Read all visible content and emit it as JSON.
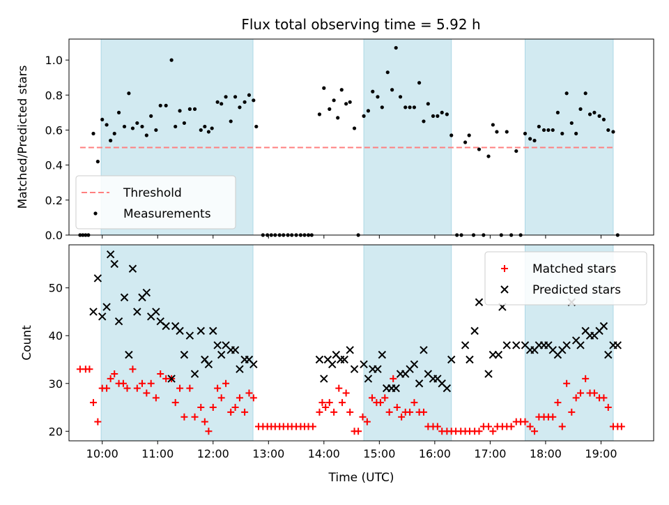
{
  "title": "Flux total observing time = 5.92 h",
  "chart_data": [
    {
      "type": "scatter",
      "title": "Flux total observing time = 5.92 h",
      "xlabel": "",
      "ylabel": "Matched/Predicted stars",
      "x_axis": "time (UTC), hours",
      "xlim": [
        9.4,
        19.95
      ],
      "ylim": [
        0,
        1.12
      ],
      "yticks": [
        0.0,
        0.2,
        0.4,
        0.6,
        0.8,
        1.0
      ],
      "ytick_labels": [
        "0.0",
        "0.2",
        "0.4",
        "0.6",
        "0.8",
        "1.0"
      ],
      "grid": false,
      "legend_position": "lower-left",
      "shaded_intervals": [
        [
          9.98,
          12.72
        ],
        [
          14.72,
          16.3
        ],
        [
          17.63,
          19.22
        ]
      ],
      "shade_color": "#add8e6",
      "series": [
        {
          "name": "Threshold",
          "style": "dashed-line",
          "color": "#ff7f7f",
          "x": [
            9.6,
            19.25
          ],
          "y": [
            0.5,
            0.5
          ]
        },
        {
          "name": "Measurements",
          "style": "dot",
          "color": "#000000",
          "x": [
            9.6,
            9.65,
            9.7,
            9.75,
            9.84,
            9.92,
            10.0,
            10.08,
            10.15,
            10.22,
            10.3,
            10.4,
            10.48,
            10.55,
            10.63,
            10.72,
            10.8,
            10.88,
            10.97,
            11.05,
            11.15,
            11.25,
            11.32,
            11.4,
            11.48,
            11.58,
            11.67,
            11.78,
            11.85,
            11.92,
            11.98,
            12.08,
            12.15,
            12.23,
            12.32,
            12.4,
            12.48,
            12.57,
            12.65,
            12.73,
            12.78,
            12.9,
            12.98,
            13.05,
            13.12,
            13.2,
            13.27,
            13.35,
            13.42,
            13.5,
            13.58,
            13.65,
            13.72,
            13.78,
            13.92,
            14.0,
            14.1,
            14.18,
            14.25,
            14.32,
            14.4,
            14.47,
            14.55,
            14.62,
            14.72,
            14.8,
            14.88,
            14.97,
            15.05,
            15.15,
            15.23,
            15.3,
            15.38,
            15.47,
            15.55,
            15.63,
            15.72,
            15.8,
            15.88,
            15.97,
            16.05,
            16.13,
            16.22,
            16.3,
            16.4,
            16.48,
            16.55,
            16.62,
            16.7,
            16.8,
            16.88,
            16.97,
            17.05,
            17.12,
            17.2,
            17.3,
            17.38,
            17.47,
            17.55,
            17.63,
            17.72,
            17.8,
            17.88,
            17.97,
            18.05,
            18.13,
            18.22,
            18.3,
            18.38,
            18.47,
            18.55,
            18.63,
            18.72,
            18.8,
            18.88,
            18.97,
            19.05,
            19.13,
            19.22,
            19.3
          ],
          "y": [
            0.0,
            0.0,
            0.0,
            0.0,
            0.58,
            0.42,
            0.66,
            0.63,
            0.54,
            0.58,
            0.7,
            0.62,
            0.81,
            0.61,
            0.64,
            0.62,
            0.57,
            0.68,
            0.6,
            0.74,
            0.74,
            1.0,
            0.62,
            0.71,
            0.64,
            0.72,
            0.72,
            0.6,
            0.62,
            0.59,
            0.61,
            0.76,
            0.75,
            0.79,
            0.65,
            0.79,
            0.73,
            0.76,
            0.8,
            0.77,
            0.62,
            0.0,
            0.0,
            0.0,
            0.0,
            0.0,
            0.0,
            0.0,
            0.0,
            0.0,
            0.0,
            0.0,
            0.0,
            0.0,
            0.69,
            0.84,
            0.72,
            0.77,
            0.67,
            0.83,
            0.75,
            0.76,
            0.61,
            0.0,
            0.68,
            0.71,
            0.82,
            0.79,
            0.73,
            0.93,
            0.83,
            1.07,
            0.79,
            0.73,
            0.73,
            0.73,
            0.87,
            0.65,
            0.75,
            0.68,
            0.68,
            0.7,
            0.69,
            0.57,
            0.0,
            0.0,
            0.53,
            0.57,
            0.0,
            0.49,
            0.0,
            0.45,
            0.63,
            0.59,
            0.0,
            0.59,
            0.0,
            0.48,
            0.0,
            0.58,
            0.55,
            0.54,
            0.62,
            0.6,
            0.6,
            0.6,
            0.7,
            0.58,
            0.81,
            0.64,
            0.58,
            0.72,
            0.81,
            0.69,
            0.7,
            0.68,
            0.66,
            0.6,
            0.59,
            0.0
          ]
        }
      ]
    },
    {
      "type": "scatter",
      "title": "",
      "xlabel": "Time (UTC)",
      "ylabel": "Count",
      "xlim": [
        9.4,
        19.95
      ],
      "ylim": [
        18,
        59
      ],
      "xticks": [
        10,
        11,
        12,
        13,
        14,
        15,
        16,
        17,
        18,
        19
      ],
      "xtick_labels": [
        "10:00",
        "11:00",
        "12:00",
        "13:00",
        "14:00",
        "15:00",
        "16:00",
        "17:00",
        "18:00",
        "19:00"
      ],
      "yticks": [
        20,
        30,
        40,
        50
      ],
      "ytick_labels": [
        "20",
        "30",
        "40",
        "50"
      ],
      "grid": false,
      "legend_position": "upper-right",
      "shaded_intervals": [
        [
          9.98,
          12.72
        ],
        [
          14.72,
          16.3
        ],
        [
          17.63,
          19.22
        ]
      ],
      "shade_color": "#add8e6",
      "series": [
        {
          "name": "Matched stars",
          "marker": "plus",
          "color": "#ff0000",
          "x": [
            9.6,
            9.7,
            9.77,
            9.84,
            9.92,
            10.0,
            10.08,
            10.15,
            10.22,
            10.3,
            10.38,
            10.45,
            10.55,
            10.63,
            10.72,
            10.8,
            10.88,
            10.97,
            11.05,
            11.15,
            11.25,
            11.32,
            11.4,
            11.48,
            11.58,
            11.67,
            11.78,
            11.85,
            11.92,
            12.0,
            12.08,
            12.15,
            12.23,
            12.32,
            12.4,
            12.48,
            12.57,
            12.65,
            12.73,
            12.82,
            12.9,
            12.98,
            13.05,
            13.12,
            13.2,
            13.27,
            13.35,
            13.42,
            13.5,
            13.58,
            13.65,
            13.72,
            13.8,
            13.92,
            13.97,
            14.03,
            14.1,
            14.18,
            14.27,
            14.33,
            14.4,
            14.47,
            14.55,
            14.62,
            14.7,
            14.78,
            14.87,
            14.95,
            15.02,
            15.1,
            15.18,
            15.25,
            15.32,
            15.4,
            15.47,
            15.55,
            15.63,
            15.72,
            15.8,
            15.88,
            15.97,
            16.05,
            16.13,
            16.22,
            16.3,
            16.38,
            16.47,
            16.55,
            16.63,
            16.72,
            16.8,
            16.88,
            16.97,
            17.05,
            17.13,
            17.22,
            17.3,
            17.38,
            17.47,
            17.55,
            17.63,
            17.72,
            17.8,
            17.88,
            17.97,
            18.05,
            18.13,
            18.22,
            18.3,
            18.38,
            18.47,
            18.55,
            18.63,
            18.72,
            18.8,
            18.88,
            18.97,
            19.05,
            19.13,
            19.22,
            19.3,
            19.37
          ],
          "y": [
            33,
            33,
            33,
            26,
            22,
            29,
            29,
            31,
            32,
            30,
            30,
            29,
            33,
            29,
            30,
            28,
            30,
            27,
            32,
            31,
            31,
            26,
            29,
            23,
            29,
            23,
            25,
            22,
            20,
            25,
            29,
            27,
            30,
            24,
            25,
            27,
            24,
            28,
            27,
            21,
            21,
            21,
            21,
            21,
            21,
            21,
            21,
            21,
            21,
            21,
            21,
            21,
            21,
            24,
            26,
            25,
            26,
            24,
            29,
            26,
            28,
            24,
            20,
            20,
            23,
            22,
            27,
            26,
            26,
            27,
            24,
            31,
            25,
            23,
            24,
            24,
            26,
            24,
            24,
            21,
            21,
            21,
            20,
            20,
            20,
            20,
            20,
            20,
            20,
            20,
            20,
            21,
            21,
            20,
            21,
            21,
            21,
            21,
            22,
            22,
            22,
            21,
            20,
            23,
            23,
            23,
            23,
            26,
            21,
            30,
            24,
            27,
            28,
            31,
            28,
            28,
            27,
            27,
            25,
            21,
            21,
            21
          ]
        },
        {
          "name": "Predicted stars",
          "marker": "x",
          "color": "#000000",
          "x": [
            9.84,
            9.92,
            10.0,
            10.08,
            10.15,
            10.22,
            10.3,
            10.4,
            10.48,
            10.55,
            10.63,
            10.72,
            10.8,
            10.88,
            10.97,
            11.05,
            11.15,
            11.25,
            11.32,
            11.4,
            11.48,
            11.58,
            11.67,
            11.78,
            11.85,
            11.92,
            12.0,
            12.08,
            12.15,
            12.23,
            12.32,
            12.4,
            12.48,
            12.57,
            12.65,
            12.73,
            13.92,
            14.0,
            14.07,
            14.15,
            14.22,
            14.3,
            14.37,
            14.47,
            14.55,
            14.72,
            14.8,
            14.88,
            14.97,
            15.05,
            15.13,
            15.22,
            15.3,
            15.38,
            15.47,
            15.55,
            15.63,
            15.72,
            15.8,
            15.88,
            15.97,
            16.05,
            16.13,
            16.22,
            16.3,
            16.55,
            16.63,
            16.72,
            16.8,
            16.97,
            17.05,
            17.15,
            17.22,
            17.3,
            17.47,
            17.63,
            17.72,
            17.8,
            17.88,
            17.97,
            18.05,
            18.13,
            18.22,
            18.3,
            18.38,
            18.47,
            18.55,
            18.63,
            18.72,
            18.8,
            18.88,
            18.97,
            19.05,
            19.13,
            19.22,
            19.3
          ],
          "y": [
            45,
            52,
            44,
            46,
            57,
            55,
            43,
            48,
            36,
            54,
            45,
            48,
            49,
            44,
            45,
            43,
            42,
            31,
            42,
            41,
            36,
            40,
            32,
            41,
            35,
            34,
            41,
            38,
            36,
            38,
            37,
            37,
            33,
            35,
            35,
            34,
            35,
            31,
            35,
            34,
            36,
            35,
            35,
            37,
            33,
            34,
            31,
            33,
            33,
            36,
            29,
            29,
            29,
            32,
            32,
            33,
            34,
            30,
            37,
            32,
            31,
            31,
            30,
            29,
            35,
            38,
            35,
            41,
            47,
            32,
            36,
            36,
            46,
            38,
            38,
            38,
            37,
            37,
            38,
            38,
            38,
            37,
            36,
            37,
            38,
            47,
            39,
            38,
            41,
            40,
            40,
            41,
            42,
            36,
            38,
            38
          ]
        }
      ]
    }
  ]
}
